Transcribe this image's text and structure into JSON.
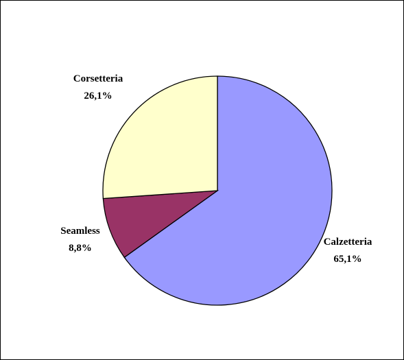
{
  "chart_data": {
    "type": "pie",
    "title": "",
    "start_angle_deg": 0,
    "direction": "clockwise",
    "slices": [
      {
        "name": "Calzetteria",
        "value": 65.1,
        "label": "65,1%",
        "color": "#9999ff"
      },
      {
        "name": "Seamless",
        "value": 8.8,
        "label": "8,8%",
        "color": "#993366"
      },
      {
        "name": "Corsetteria",
        "value": 26.1,
        "label": "26,1%",
        "color": "#ffffcc"
      }
    ],
    "legend": "none"
  }
}
